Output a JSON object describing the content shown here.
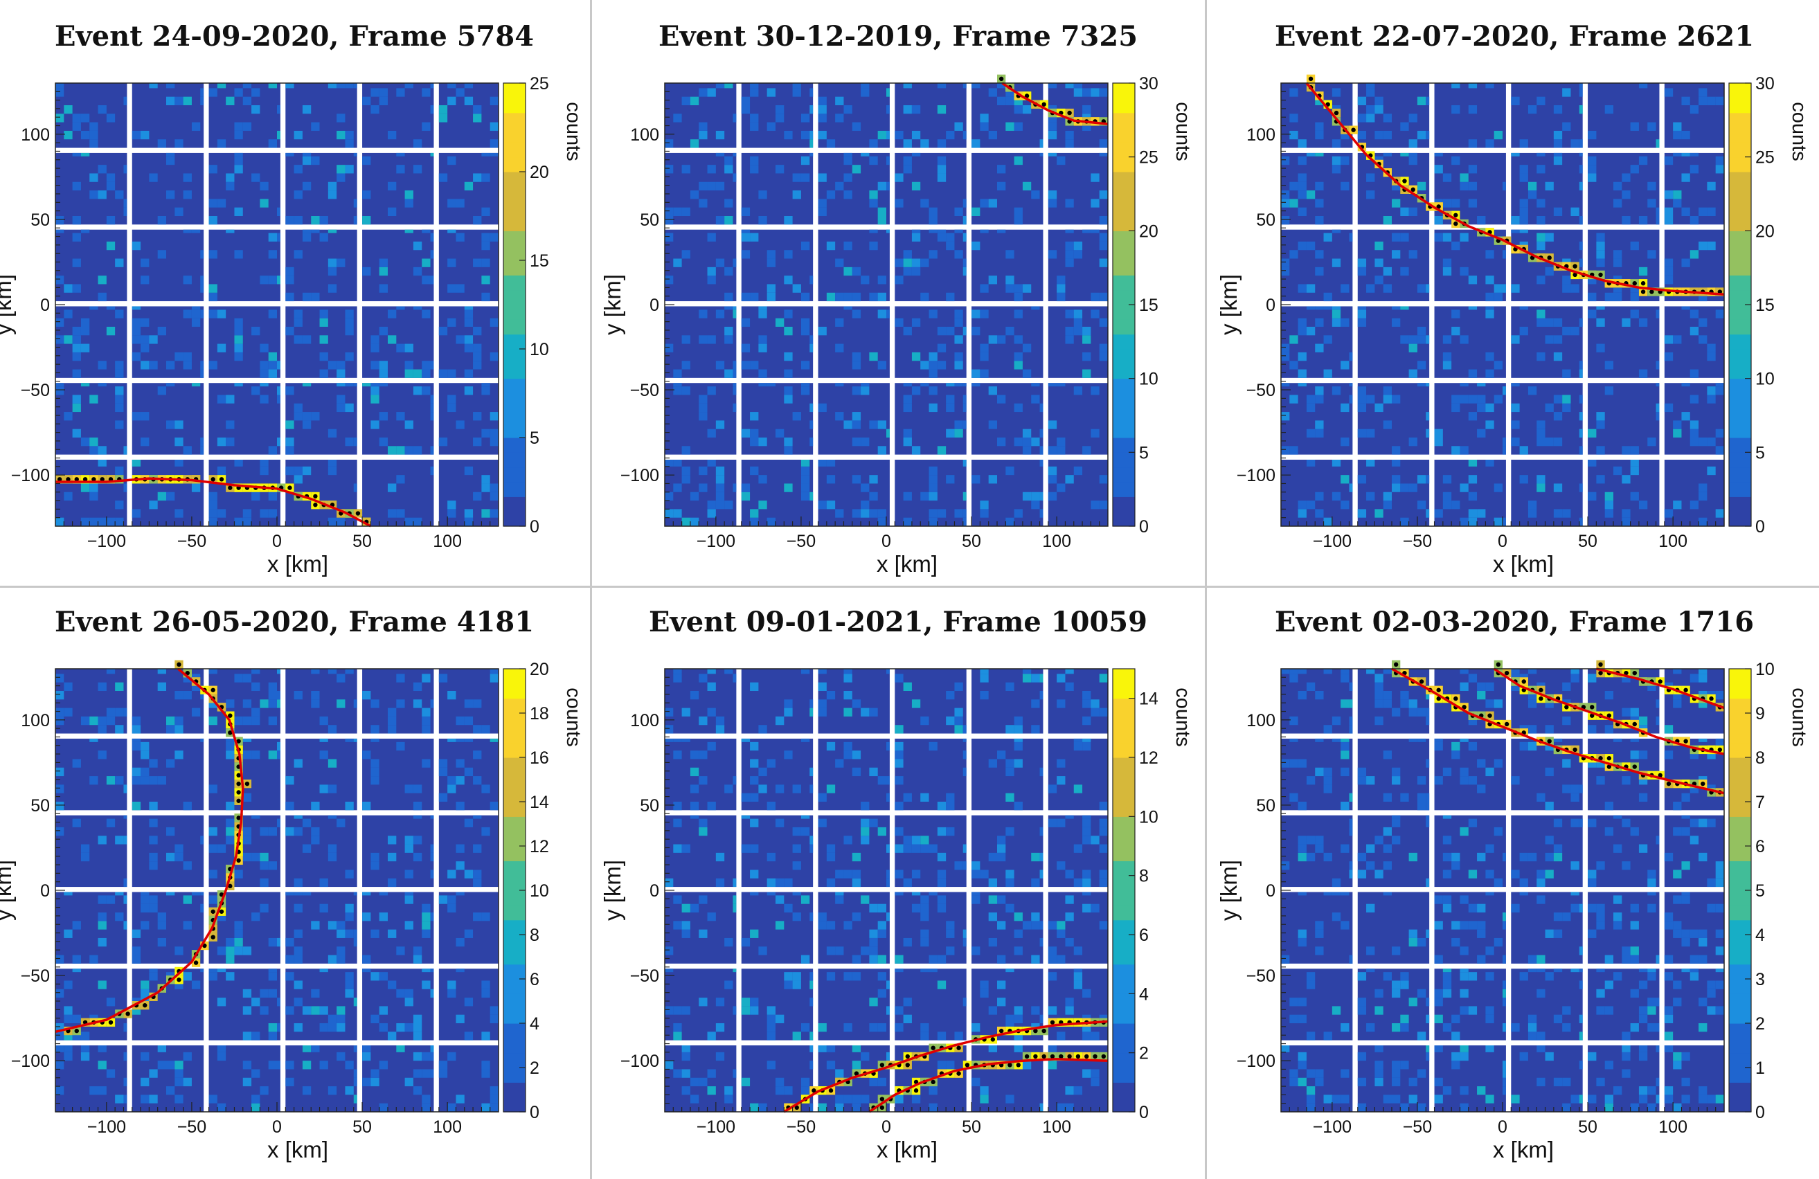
{
  "figure": {
    "grid_layout": "2x3",
    "background": "#ffffff",
    "separator_color": "#c8c8c8",
    "track_color": "#e00000",
    "hit_marker_color": "#000000",
    "module_background": "#2e42a6",
    "colormap": [
      "#2e42a6",
      "#1f65cf",
      "#1c8fdf",
      "#17aec6",
      "#41bd98",
      "#94c160",
      "#d6b83a",
      "#f9d22d",
      "#f9f50a"
    ]
  },
  "chart_data": [
    {
      "type": "heatmap",
      "title": "Event 24-09-2020, Frame 5784",
      "xlabel": "x [km]",
      "ylabel": "y [km]",
      "zlabel": "counts",
      "xlim": [
        -130,
        130
      ],
      "ylim": [
        -130,
        130
      ],
      "xticks": [
        -100,
        -50,
        0,
        50,
        100
      ],
      "yticks": [
        -100,
        -50,
        0,
        50,
        100
      ],
      "colorbar": {
        "min": 0,
        "max": 25,
        "ticks": [
          0,
          5,
          10,
          15,
          20,
          25
        ]
      },
      "tracks": [
        {
          "points": [
            [
              -130,
              -104
            ],
            [
              -100,
              -104
            ],
            [
              -75,
              -102
            ],
            [
              -50,
              -103
            ],
            [
              -25,
              -106
            ],
            [
              0,
              -108
            ],
            [
              20,
              -114
            ],
            [
              40,
              -122
            ],
            [
              55,
              -130
            ]
          ]
        }
      ]
    },
    {
      "type": "heatmap",
      "title": "Event 30-12-2019, Frame 7325",
      "xlabel": "x [km]",
      "ylabel": "y [km]",
      "zlabel": "counts",
      "xlim": [
        -130,
        130
      ],
      "ylim": [
        -130,
        130
      ],
      "xticks": [
        -100,
        -50,
        0,
        50,
        100
      ],
      "yticks": [
        -100,
        -50,
        0,
        50,
        100
      ],
      "colorbar": {
        "min": 0,
        "max": 30,
        "ticks": [
          0,
          5,
          10,
          15,
          20,
          25,
          30
        ]
      },
      "tracks": [
        {
          "points": [
            [
              68,
              130
            ],
            [
              80,
              122
            ],
            [
              95,
              114
            ],
            [
              110,
              108
            ],
            [
              130,
              106
            ]
          ]
        }
      ]
    },
    {
      "type": "heatmap",
      "title": "Event 22-07-2020, Frame 2621",
      "xlabel": "x [km]",
      "ylabel": "y [km]",
      "zlabel": "counts",
      "xlim": [
        -130,
        130
      ],
      "ylim": [
        -130,
        130
      ],
      "xticks": [
        -100,
        -50,
        0,
        50,
        100
      ],
      "yticks": [
        -100,
        -50,
        0,
        50,
        100
      ],
      "colorbar": {
        "min": 0,
        "max": 30,
        "ticks": [
          0,
          5,
          10,
          15,
          20,
          25,
          30
        ]
      },
      "tracks": [
        {
          "points": [
            [
              -115,
              130
            ],
            [
              -100,
              112
            ],
            [
              -80,
              88
            ],
            [
              -60,
              70
            ],
            [
              -40,
              57
            ],
            [
              -20,
              46
            ],
            [
              0,
              38
            ],
            [
              20,
              28
            ],
            [
              40,
              20
            ],
            [
              60,
              14
            ],
            [
              80,
              10
            ],
            [
              100,
              8
            ],
            [
              130,
              6
            ]
          ]
        }
      ]
    },
    {
      "type": "heatmap",
      "title": "Event 26-05-2020, Frame 4181",
      "xlabel": "x [km]",
      "ylabel": "y [km]",
      "zlabel": "counts",
      "xlim": [
        -130,
        130
      ],
      "ylim": [
        -130,
        130
      ],
      "xticks": [
        -100,
        -50,
        0,
        50,
        100
      ],
      "yticks": [
        -100,
        -50,
        0,
        50,
        100
      ],
      "colorbar": {
        "min": 0,
        "max": 20,
        "ticks": [
          0,
          2,
          4,
          6,
          8,
          10,
          12,
          14,
          16,
          18,
          20
        ]
      },
      "tracks": [
        {
          "points": [
            [
              -58,
              130
            ],
            [
              -40,
              115
            ],
            [
              -28,
              100
            ],
            [
              -22,
              80
            ],
            [
              -20,
              60
            ],
            [
              -21,
              40
            ],
            [
              -24,
              20
            ],
            [
              -30,
              0
            ],
            [
              -38,
              -22
            ],
            [
              -50,
              -42
            ],
            [
              -70,
              -60
            ],
            [
              -100,
              -76
            ],
            [
              -130,
              -83
            ]
          ]
        }
      ]
    },
    {
      "type": "heatmap",
      "title": "Event 09-01-2021, Frame 10059",
      "xlabel": "x [km]",
      "ylabel": "y [km]",
      "zlabel": "counts",
      "xlim": [
        -130,
        130
      ],
      "ylim": [
        -130,
        130
      ],
      "xticks": [
        -100,
        -50,
        0,
        50,
        100
      ],
      "yticks": [
        -100,
        -50,
        0,
        50,
        100
      ],
      "colorbar": {
        "min": 0,
        "max": 15,
        "ticks": [
          0,
          2,
          4,
          6,
          8,
          10,
          12,
          14
        ]
      },
      "tracks": [
        {
          "points": [
            [
              -60,
              -130
            ],
            [
              -40,
              -118
            ],
            [
              -20,
              -110
            ],
            [
              0,
              -104
            ],
            [
              20,
              -97
            ],
            [
              40,
              -91
            ],
            [
              60,
              -86
            ],
            [
              80,
              -82
            ],
            [
              100,
              -79
            ],
            [
              130,
              -77
            ]
          ]
        },
        {
          "points": [
            [
              -10,
              -130
            ],
            [
              5,
              -120
            ],
            [
              20,
              -113
            ],
            [
              40,
              -106
            ],
            [
              60,
              -102
            ],
            [
              80,
              -100
            ],
            [
              100,
              -99
            ],
            [
              130,
              -100
            ]
          ]
        }
      ]
    },
    {
      "type": "heatmap",
      "title": "Event 02-03-2020, Frame 1716",
      "xlabel": "x [km]",
      "ylabel": "y [km]",
      "zlabel": "counts",
      "xlim": [
        -130,
        130
      ],
      "ylim": [
        -130,
        130
      ],
      "xticks": [
        -100,
        -50,
        0,
        50,
        100
      ],
      "yticks": [
        -100,
        -50,
        0,
        50,
        100
      ],
      "colorbar": {
        "min": 0,
        "max": 10,
        "ticks": [
          0,
          1,
          2,
          3,
          4,
          5,
          6,
          7,
          8,
          9,
          10
        ]
      },
      "tracks": [
        {
          "points": [
            [
              -65,
              130
            ],
            [
              -40,
              116
            ],
            [
              -20,
              104
            ],
            [
              0,
              96
            ],
            [
              20,
              88
            ],
            [
              40,
              81
            ],
            [
              60,
              75
            ],
            [
              80,
              69
            ],
            [
              100,
              64
            ],
            [
              130,
              57
            ]
          ]
        },
        {
          "points": [
            [
              -5,
              130
            ],
            [
              10,
              120
            ],
            [
              30,
              112
            ],
            [
              50,
              105
            ],
            [
              70,
              98
            ],
            [
              90,
              90
            ],
            [
              110,
              84
            ],
            [
              130,
              80
            ]
          ]
        },
        {
          "points": [
            [
              55,
              130
            ],
            [
              80,
              124
            ],
            [
              100,
              118
            ],
            [
              130,
              107
            ]
          ]
        }
      ]
    }
  ]
}
